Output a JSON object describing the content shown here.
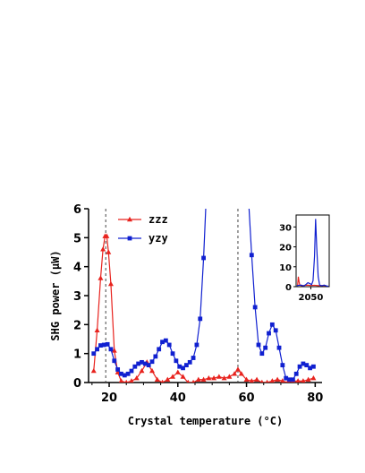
{
  "chart_data": [
    {
      "type": "line",
      "xlabel": "Crystal temperature (°C)",
      "ylabel": "SHG power (μW)",
      "xlim": [
        14,
        82
      ],
      "ylim": [
        0,
        6
      ],
      "xticks": [
        20,
        40,
        60,
        80
      ],
      "yticks": [
        0,
        1,
        2,
        3,
        4,
        5,
        6
      ],
      "grid": false,
      "legend": "top-left",
      "dashed_lines_x": [
        19,
        57.5
      ],
      "series": [
        {
          "name": "zzz",
          "color": "#e8231e",
          "marker": "triangle",
          "x": [
            15.5,
            16.5,
            17.5,
            18.2,
            18.8,
            19.3,
            19.8,
            20.5,
            21.5,
            22.5,
            23.5,
            25,
            26.5,
            28,
            29.5,
            31,
            32.5,
            34,
            35.5,
            37,
            38.5,
            40,
            41.5,
            43,
            44.5,
            46,
            47.5,
            49,
            50.5,
            52,
            53.5,
            55,
            56.5,
            57.5,
            58.5,
            60,
            61.5,
            63,
            64.5,
            66,
            67.5,
            69,
            70.5,
            72,
            73.5,
            75,
            76.5,
            78,
            79.5
          ],
          "y": [
            0.4,
            1.8,
            3.6,
            4.6,
            5.05,
            5.05,
            4.5,
            3.4,
            1.1,
            0.35,
            0.05,
            0.0,
            0.05,
            0.15,
            0.4,
            0.7,
            0.4,
            0.1,
            0.0,
            0.1,
            0.2,
            0.35,
            0.2,
            0.0,
            0.0,
            0.1,
            0.1,
            0.15,
            0.15,
            0.2,
            0.15,
            0.2,
            0.3,
            0.45,
            0.3,
            0.1,
            0.05,
            0.1,
            0.0,
            0.0,
            0.05,
            0.1,
            0.05,
            0.0,
            0.05,
            0.05,
            0.05,
            0.1,
            0.15
          ]
        },
        {
          "name": "yzy",
          "color": "#1020d0",
          "marker": "square",
          "x": [
            15.5,
            16.5,
            17.5,
            18.5,
            19.5,
            20.5,
            21.5,
            22.5,
            23.5,
            24.5,
            25.5,
            26.5,
            27.5,
            28.5,
            29.5,
            30.5,
            31.5,
            32.5,
            33.5,
            34.5,
            35.5,
            36.5,
            37.5,
            38.5,
            39.5,
            40.5,
            41.5,
            42.5,
            43.5,
            44.5,
            45.5,
            46.5,
            47.5,
            48.3,
            49.5,
            50.5,
            60.5,
            61.5,
            62.5,
            63.5,
            64.5,
            65.5,
            66.5,
            67.5,
            68.5,
            69.5,
            70.5,
            71.5,
            72.5,
            73.5,
            74.5,
            75.5,
            76.5,
            77.5,
            78.5,
            79.5
          ],
          "y": [
            1.0,
            1.15,
            1.28,
            1.3,
            1.32,
            1.15,
            0.75,
            0.45,
            0.3,
            0.25,
            0.3,
            0.4,
            0.55,
            0.65,
            0.7,
            0.65,
            0.6,
            0.72,
            0.9,
            1.15,
            1.4,
            1.45,
            1.3,
            1.0,
            0.75,
            0.55,
            0.5,
            0.6,
            0.7,
            0.85,
            1.3,
            2.2,
            4.3,
            6.5,
            8.0,
            12.0,
            6.5,
            4.4,
            2.6,
            1.3,
            1.0,
            1.2,
            1.7,
            2.0,
            1.8,
            1.2,
            0.6,
            0.15,
            0.1,
            0.1,
            0.3,
            0.55,
            0.65,
            0.6,
            0.5,
            0.55
          ]
        }
      ]
    },
    {
      "type": "line",
      "xlim": [
        2030,
        2075
      ],
      "ylim": [
        0,
        36
      ],
      "xticks": [
        2050
      ],
      "xtick_labels": [
        "2050"
      ],
      "yticks": [
        0,
        10,
        20,
        30
      ],
      "series": [
        {
          "color": "#e8231e",
          "x": [
            2032,
            2033,
            2034,
            2035,
            2037,
            2040,
            2045,
            2050,
            2055,
            2060,
            2065,
            2070
          ],
          "y": [
            0.5,
            5.0,
            2.5,
            0.8,
            0.5,
            0.6,
            0.8,
            0.6,
            0.7,
            0.5,
            0.6,
            0.5
          ]
        },
        {
          "color": "#1020d0",
          "x": [
            2031,
            2034,
            2037,
            2040,
            2043,
            2046,
            2049,
            2051,
            2053,
            2055,
            2056.5,
            2058,
            2060,
            2062,
            2065,
            2068,
            2071,
            2074
          ],
          "y": [
            0.5,
            0.7,
            0.8,
            0.3,
            1.0,
            2.0,
            1.5,
            1.0,
            3.0,
            15.0,
            34.0,
            20.0,
            5.0,
            0.8,
            0.4,
            0.8,
            0.4,
            0.2
          ]
        }
      ]
    }
  ]
}
